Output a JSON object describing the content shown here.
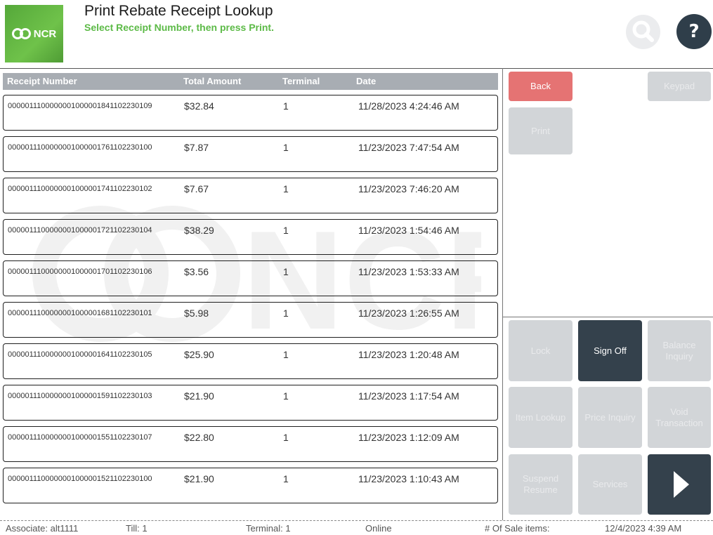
{
  "header": {
    "logo_text": "NCR",
    "title": "Print Rebate Receipt Lookup",
    "subtitle": "Select Receipt Number, then press Print.",
    "help_label": "?"
  },
  "watermark_text": "NCR",
  "table": {
    "columns": [
      "Receipt Number",
      "Total Amount",
      "Terminal",
      "Date"
    ],
    "rows": [
      {
        "receipt": "000001110000000100000184110223 0109",
        "amount": "$32.84",
        "terminal": "1",
        "date": "11/28/2023 4:24:46 AM"
      },
      {
        "receipt": "0000011100000001000001761102230100",
        "amount": "$7.87",
        "terminal": "1",
        "date": "11/23/2023 7:47:54 AM"
      },
      {
        "receipt": "0000011100000001000001741102230102",
        "amount": "$7.67",
        "terminal": "1",
        "date": "11/23/2023 7:46:20 AM"
      },
      {
        "receipt": "0000011100000001000001721102230104",
        "amount": "$38.29",
        "terminal": "1",
        "date": "11/23/2023 1:54:46 AM"
      },
      {
        "receipt": "0000011100000001000001701102230106",
        "amount": "$3.56",
        "terminal": "1",
        "date": "11/23/2023 1:53:33 AM"
      },
      {
        "receipt": "0000011100000001000001681102230101",
        "amount": "$5.98",
        "terminal": "1",
        "date": "11/23/2023 1:26:55 AM"
      },
      {
        "receipt": "0000011100000001000001641102230105",
        "amount": "$25.90",
        "terminal": "1",
        "date": "11/23/2023 1:20:48 AM"
      },
      {
        "receipt": "0000011100000001000001591102230103",
        "amount": "$21.90",
        "terminal": "1",
        "date": "11/23/2023 1:17:54 AM"
      },
      {
        "receipt": "0000011100000001000001551102230107",
        "amount": "$22.80",
        "terminal": "1",
        "date": "11/23/2023 1:12:09 AM"
      },
      {
        "receipt": "0000011100000001000001521102230100",
        "amount": "$21.90",
        "terminal": "1",
        "date": "11/23/2023 1:10:43 AM"
      }
    ]
  },
  "actions": {
    "back": "Back",
    "keypad": "Keypad",
    "print": "Print"
  },
  "function_buttons": {
    "lock": "Lock",
    "sign_off": "Sign Off",
    "balance_inquiry": "Balance Inquiry",
    "item_lookup": "Item Lookup",
    "price_inquiry": "Price Inquiry",
    "void_transaction": "Void Transaction",
    "suspend_resume": "Suspend Resume",
    "services": "Services",
    "next_icon": "right-arrow-icon"
  },
  "status_bar": {
    "associate": "Associate: alt1111",
    "till": "Till: 1",
    "terminal": "Terminal: 1",
    "status": "Online",
    "sale_items": "# Of Sale items:",
    "datetime": "12/4/2023 4:39 AM"
  },
  "colors": {
    "brand_green": "#5cba47",
    "back_red": "#e57373",
    "dark_button": "#34414c",
    "disabled_button": "#d2d5d8",
    "header_bar": "#a8adb3"
  }
}
